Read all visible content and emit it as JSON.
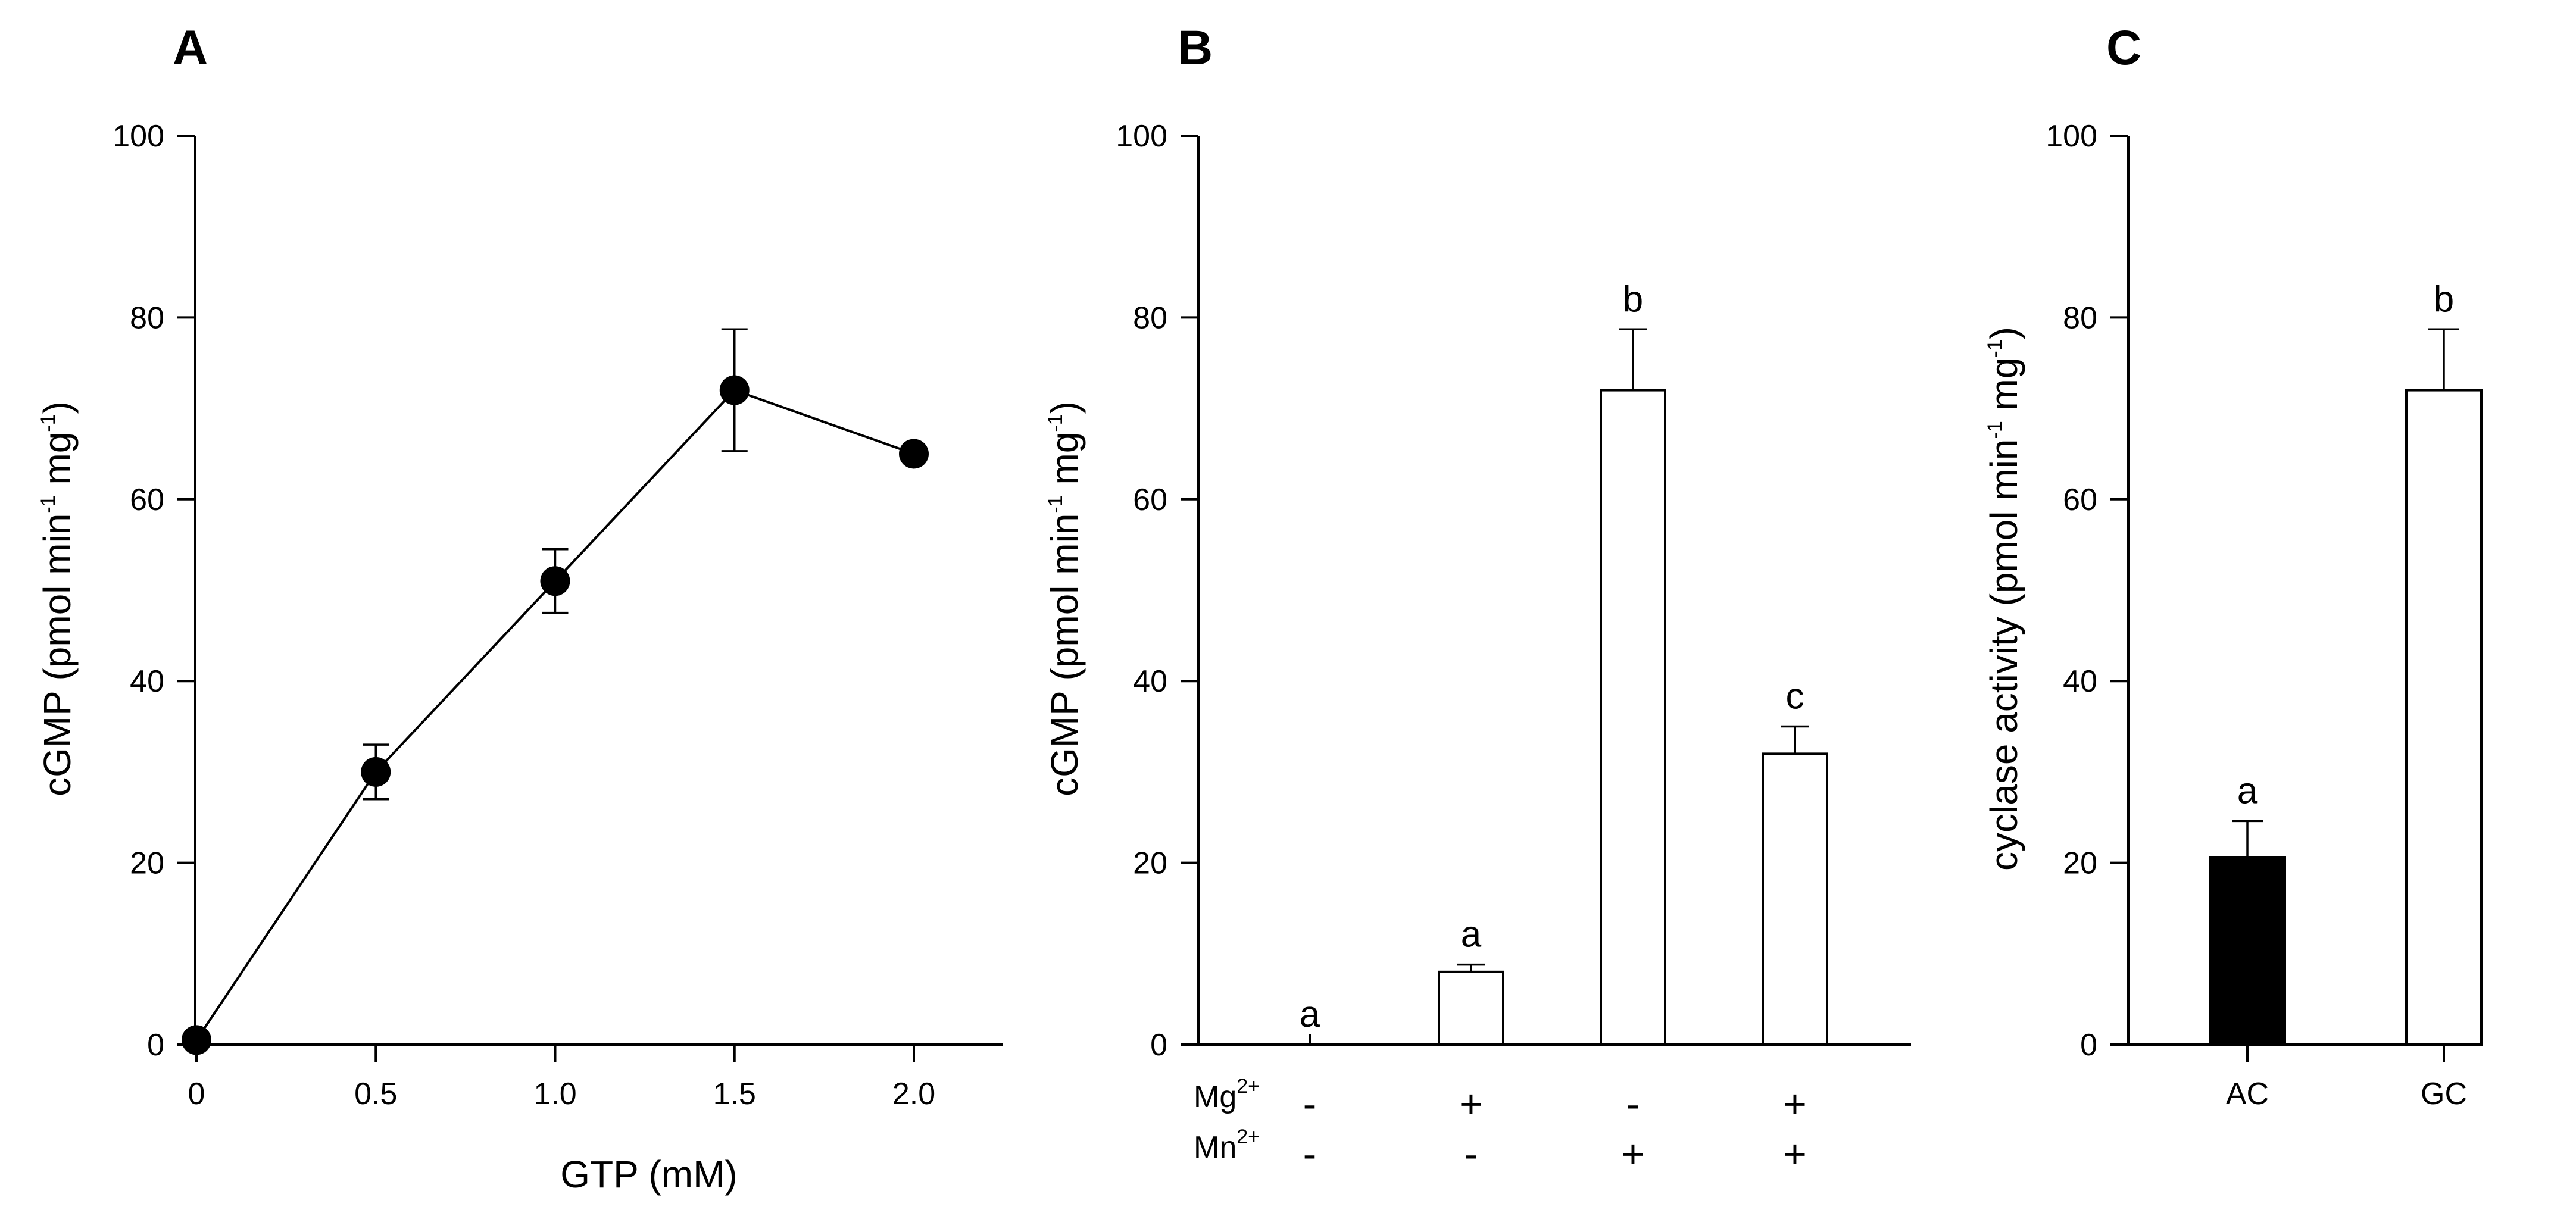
{
  "colors": {
    "ink": "#000000",
    "open_bar": "#ffffff",
    "filled_bar": "#000000"
  },
  "chart_data": [
    {
      "type": "line",
      "panel_label": "A",
      "xlabel": "GTP (mM)",
      "ylabel": {
        "main": "cGMP (pmol min",
        "sup1": "-1",
        "mid": " mg",
        "sup2": "-1",
        "end": ")"
      },
      "xlim": [
        0,
        2.25
      ],
      "ylim": [
        0,
        100
      ],
      "xticks": [
        0,
        0.5,
        1.0,
        1.5,
        2.0
      ],
      "xtick_labels": [
        "0",
        "0.5",
        "1.0",
        "1.5",
        "2.0"
      ],
      "yticks": [
        0,
        20,
        40,
        60,
        80,
        100
      ],
      "ytick_labels": [
        "0",
        "20",
        "40",
        "60",
        "80",
        "100"
      ],
      "series": [
        {
          "name": "cGMP",
          "x": [
            0,
            0.5,
            1.0,
            1.5,
            2.0
          ],
          "y": [
            0.5,
            30,
            51,
            72,
            65
          ],
          "err": [
            0,
            3,
            3.5,
            6.7,
            0
          ]
        }
      ]
    },
    {
      "type": "bar",
      "panel_label": "B",
      "ylabel": {
        "main": "cGMP (pmol min",
        "sup1": "-1",
        "mid": " mg",
        "sup2": "-1",
        "end": ")"
      },
      "ylim": [
        0,
        100
      ],
      "yticks": [
        0,
        20,
        40,
        60,
        80,
        100
      ],
      "ytick_labels": [
        "0",
        "20",
        "40",
        "60",
        "80",
        "100"
      ],
      "categories": [
        "-Mg -Mn",
        "+Mg -Mn",
        "-Mg +Mn",
        "+Mg +Mn"
      ],
      "values": [
        0,
        8,
        72,
        32
      ],
      "errors": [
        0,
        0.8,
        6.7,
        3
      ],
      "significance": [
        "a",
        "a",
        "b",
        "c"
      ],
      "conditions": [
        {
          "label": "Mg",
          "sup": "2+",
          "signs": [
            "-",
            "+",
            "-",
            "+"
          ]
        },
        {
          "label": "Mn",
          "sup": "2+",
          "signs": [
            "-",
            "-",
            "+",
            "+"
          ]
        }
      ]
    },
    {
      "type": "bar",
      "panel_label": "C",
      "ylabel": {
        "main": "cyclase activity (pmol min",
        "sup1": "-1",
        "mid": " mg",
        "sup2": "-1",
        "end": ")"
      },
      "ylim": [
        0,
        100
      ],
      "yticks": [
        0,
        20,
        40,
        60,
        80,
        100
      ],
      "ytick_labels": [
        "0",
        "20",
        "40",
        "60",
        "80",
        "100"
      ],
      "categories": [
        "AC",
        "GC"
      ],
      "values": [
        20.6,
        72
      ],
      "errors": [
        4,
        6.7
      ],
      "fills": [
        "filled",
        "open"
      ],
      "significance": [
        "a",
        "b"
      ]
    }
  ]
}
